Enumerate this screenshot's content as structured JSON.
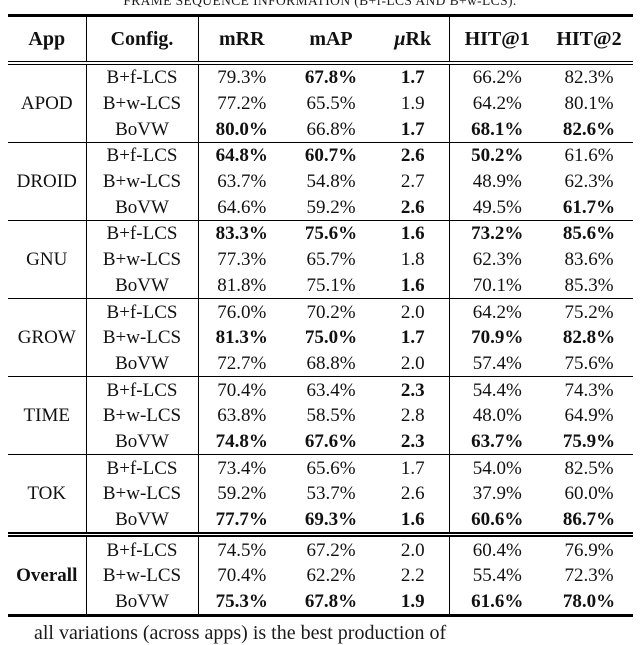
{
  "caption": "FRAME SEQUENCE INFORMATION (B+f-LCS AND B+w-LCS).",
  "bottom_text": "all variations (across apps) is the best production of",
  "colors": {
    "text": "#111111",
    "rule": "#000000",
    "background": "#ffffff"
  },
  "header": {
    "app": "App",
    "config": "Config.",
    "mrr": "mRR",
    "map": "mAP",
    "murk_mu": "μ",
    "murk_rest": "Rk",
    "hit1": "HIT@1",
    "hit2": "HIT@2"
  },
  "table": {
    "columns": [
      "App",
      "Config.",
      "mRR",
      "mAP",
      "μRk",
      "HIT@1",
      "HIT@2"
    ],
    "groups": [
      {
        "app": "APOD",
        "app_bold": false,
        "separator": "none",
        "rows": [
          {
            "config": "B+f-LCS",
            "values": [
              "79.3%",
              "67.8%",
              "1.7",
              "66.2%",
              "82.3%"
            ],
            "bold": [
              false,
              true,
              true,
              false,
              false
            ]
          },
          {
            "config": "B+w-LCS",
            "values": [
              "77.2%",
              "65.5%",
              "1.9",
              "64.2%",
              "80.1%"
            ],
            "bold": [
              false,
              false,
              false,
              false,
              false
            ]
          },
          {
            "config": "BoVW",
            "values": [
              "80.0%",
              "66.8%",
              "1.7",
              "68.1%",
              "82.6%"
            ],
            "bold": [
              true,
              false,
              true,
              true,
              true
            ]
          }
        ]
      },
      {
        "app": "DROID",
        "app_bold": false,
        "separator": "single",
        "rows": [
          {
            "config": "B+f-LCS",
            "values": [
              "64.8%",
              "60.7%",
              "2.6",
              "50.2%",
              "61.6%"
            ],
            "bold": [
              true,
              true,
              true,
              true,
              false
            ]
          },
          {
            "config": "B+w-LCS",
            "values": [
              "63.7%",
              "54.8%",
              "2.7",
              "48.9%",
              "62.3%"
            ],
            "bold": [
              false,
              false,
              false,
              false,
              false
            ]
          },
          {
            "config": "BoVW",
            "values": [
              "64.6%",
              "59.2%",
              "2.6",
              "49.5%",
              "61.7%"
            ],
            "bold": [
              false,
              false,
              true,
              false,
              true
            ]
          }
        ]
      },
      {
        "app": "GNU",
        "app_bold": false,
        "separator": "single",
        "rows": [
          {
            "config": "B+f-LCS",
            "values": [
              "83.3%",
              "75.6%",
              "1.6",
              "73.2%",
              "85.6%"
            ],
            "bold": [
              true,
              true,
              true,
              true,
              true
            ]
          },
          {
            "config": "B+w-LCS",
            "values": [
              "77.3%",
              "65.7%",
              "1.8",
              "62.3%",
              "83.6%"
            ],
            "bold": [
              false,
              false,
              false,
              false,
              false
            ]
          },
          {
            "config": "BoVW",
            "values": [
              "81.8%",
              "75.1%",
              "1.6",
              "70.1%",
              "85.3%"
            ],
            "bold": [
              false,
              false,
              true,
              false,
              false
            ]
          }
        ]
      },
      {
        "app": "GROW",
        "app_bold": false,
        "separator": "single",
        "rows": [
          {
            "config": "B+f-LCS",
            "values": [
              "76.0%",
              "70.2%",
              "2.0",
              "64.2%",
              "75.2%"
            ],
            "bold": [
              false,
              false,
              false,
              false,
              false
            ]
          },
          {
            "config": "B+w-LCS",
            "values": [
              "81.3%",
              "75.0%",
              "1.7",
              "70.9%",
              "82.8%"
            ],
            "bold": [
              true,
              true,
              true,
              true,
              true
            ]
          },
          {
            "config": "BoVW",
            "values": [
              "72.7%",
              "68.8%",
              "2.0",
              "57.4%",
              "75.6%"
            ],
            "bold": [
              false,
              false,
              false,
              false,
              false
            ]
          }
        ]
      },
      {
        "app": "TIME",
        "app_bold": false,
        "separator": "single",
        "rows": [
          {
            "config": "B+f-LCS",
            "values": [
              "70.4%",
              "63.4%",
              "2.3",
              "54.4%",
              "74.3%"
            ],
            "bold": [
              false,
              false,
              true,
              false,
              false
            ]
          },
          {
            "config": "B+w-LCS",
            "values": [
              "63.8%",
              "58.5%",
              "2.8",
              "48.0%",
              "64.9%"
            ],
            "bold": [
              false,
              false,
              false,
              false,
              false
            ]
          },
          {
            "config": "BoVW",
            "values": [
              "74.8%",
              "67.6%",
              "2.3",
              "63.7%",
              "75.9%"
            ],
            "bold": [
              true,
              true,
              true,
              true,
              true
            ]
          }
        ]
      },
      {
        "app": "TOK",
        "app_bold": false,
        "separator": "single",
        "rows": [
          {
            "config": "B+f-LCS",
            "values": [
              "73.4%",
              "65.6%",
              "1.7",
              "54.0%",
              "82.5%"
            ],
            "bold": [
              false,
              false,
              false,
              false,
              false
            ]
          },
          {
            "config": "B+w-LCS",
            "values": [
              "59.2%",
              "53.7%",
              "2.6",
              "37.9%",
              "60.0%"
            ],
            "bold": [
              false,
              false,
              false,
              false,
              false
            ]
          },
          {
            "config": "BoVW",
            "values": [
              "77.7%",
              "69.3%",
              "1.6",
              "60.6%",
              "86.7%"
            ],
            "bold": [
              true,
              true,
              true,
              true,
              true
            ]
          }
        ]
      },
      {
        "app": "Overall",
        "app_bold": true,
        "separator": "double",
        "rows": [
          {
            "config": "B+f-LCS",
            "values": [
              "74.5%",
              "67.2%",
              "2.0",
              "60.4%",
              "76.9%"
            ],
            "bold": [
              false,
              false,
              false,
              false,
              false
            ]
          },
          {
            "config": "B+w-LCS",
            "values": [
              "70.4%",
              "62.2%",
              "2.2",
              "55.4%",
              "72.3%"
            ],
            "bold": [
              false,
              false,
              false,
              false,
              false
            ]
          },
          {
            "config": "BoVW",
            "values": [
              "75.3%",
              "67.8%",
              "1.9",
              "61.6%",
              "78.0%"
            ],
            "bold": [
              true,
              true,
              true,
              true,
              true
            ]
          }
        ]
      }
    ]
  }
}
